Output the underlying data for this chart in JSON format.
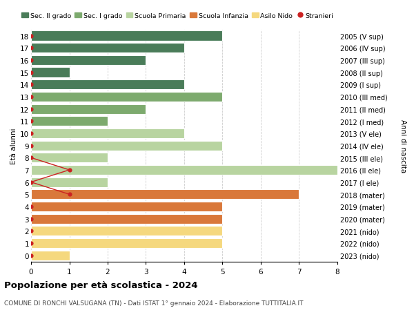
{
  "ages": [
    18,
    17,
    16,
    15,
    14,
    13,
    12,
    11,
    10,
    9,
    8,
    7,
    6,
    5,
    4,
    3,
    2,
    1,
    0
  ],
  "right_labels": [
    "2005 (V sup)",
    "2006 (IV sup)",
    "2007 (III sup)",
    "2008 (II sup)",
    "2009 (I sup)",
    "2010 (III med)",
    "2011 (II med)",
    "2012 (I med)",
    "2013 (V ele)",
    "2014 (IV ele)",
    "2015 (III ele)",
    "2016 (II ele)",
    "2017 (I ele)",
    "2018 (mater)",
    "2019 (mater)",
    "2020 (mater)",
    "2021 (nido)",
    "2022 (nido)",
    "2023 (nido)"
  ],
  "bar_values": [
    5,
    4,
    3,
    1,
    4,
    5,
    3,
    2,
    4,
    5,
    2,
    8,
    2,
    7,
    5,
    5,
    5,
    5,
    1
  ],
  "bar_colors": [
    "#4a7c59",
    "#4a7c59",
    "#4a7c59",
    "#4a7c59",
    "#4a7c59",
    "#7daa6e",
    "#7daa6e",
    "#7daa6e",
    "#b8d4a0",
    "#b8d4a0",
    "#b8d4a0",
    "#b8d4a0",
    "#b8d4a0",
    "#d9783a",
    "#d9783a",
    "#d9783a",
    "#f5d87e",
    "#f5d87e",
    "#f5d87e"
  ],
  "stranieri_all_ages": [
    18,
    17,
    16,
    15,
    14,
    13,
    12,
    11,
    10,
    9,
    8,
    7,
    6,
    5,
    4,
    3,
    2,
    1,
    0
  ],
  "stranieri_all_x": [
    0,
    0,
    0,
    0,
    0,
    0,
    0,
    0,
    0,
    0,
    0,
    1,
    0,
    1,
    0,
    0,
    0,
    0,
    0
  ],
  "stranieri_line_ages": [
    8,
    7,
    6,
    5
  ],
  "stranieri_line_x": [
    0,
    1,
    0,
    1
  ],
  "legend_labels": [
    "Sec. II grado",
    "Sec. I grado",
    "Scuola Primaria",
    "Scuola Infanzia",
    "Asilo Nido",
    "Stranieri"
  ],
  "legend_colors": [
    "#4a7c59",
    "#7daa6e",
    "#b8d4a0",
    "#d9783a",
    "#f5d87e",
    "#cc2222"
  ],
  "title": "Popolazione per età scolastica - 2024",
  "subtitle": "COMUNE DI RONCHI VALSUGANA (TN) - Dati ISTAT 1° gennaio 2024 - Elaborazione TUTTITALIA.IT",
  "ylabel_left": "Età alunni",
  "ylabel_right": "Anni di nascita",
  "xlim": [
    0,
    8
  ],
  "ylim": [
    -0.5,
    18.5
  ],
  "background_color": "#ffffff",
  "grid_color": "#cccccc",
  "bar_height": 0.8
}
